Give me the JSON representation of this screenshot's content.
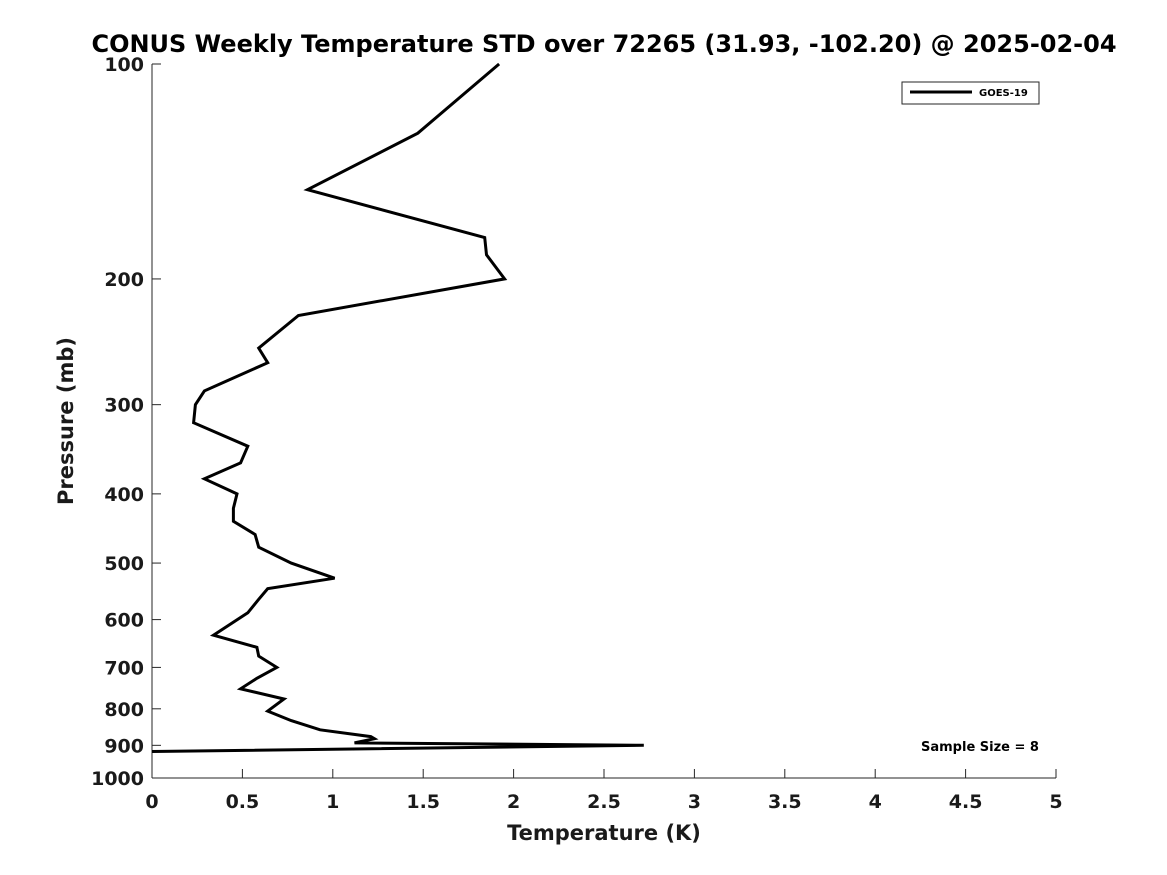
{
  "chart_data": {
    "type": "line",
    "title": "CONUS Weekly Temperature STD over 72265 (31.93, -102.20) @ 2025-02-04",
    "xlabel": "Temperature (K)",
    "ylabel": "Pressure (mb)",
    "xlim": [
      0,
      5
    ],
    "ylim": [
      1000,
      100
    ],
    "y_scale": "log",
    "x_ticks": [
      "0",
      "0.5",
      "1",
      "1.5",
      "2",
      "2.5",
      "3",
      "3.5",
      "4",
      "4.5",
      "5"
    ],
    "y_ticks": [
      "100",
      "200",
      "300",
      "400",
      "500",
      "600",
      "700",
      "800",
      "900",
      "1000"
    ],
    "grid": false,
    "legend_position": "top-right",
    "annotation": "Sample Size = 8",
    "series": [
      {
        "name": "GOES-19",
        "color": "#000000",
        "points": [
          {
            "x": 1.92,
            "p": 100
          },
          {
            "x": 1.47,
            "p": 125
          },
          {
            "x": 0.86,
            "p": 150
          },
          {
            "x": 1.84,
            "p": 175
          },
          {
            "x": 1.85,
            "p": 185
          },
          {
            "x": 1.95,
            "p": 200
          },
          {
            "x": 0.81,
            "p": 225
          },
          {
            "x": 0.59,
            "p": 250
          },
          {
            "x": 0.64,
            "p": 262
          },
          {
            "x": 0.29,
            "p": 287
          },
          {
            "x": 0.24,
            "p": 300
          },
          {
            "x": 0.23,
            "p": 318
          },
          {
            "x": 0.53,
            "p": 343
          },
          {
            "x": 0.49,
            "p": 362
          },
          {
            "x": 0.29,
            "p": 381
          },
          {
            "x": 0.47,
            "p": 400
          },
          {
            "x": 0.45,
            "p": 419
          },
          {
            "x": 0.45,
            "p": 437
          },
          {
            "x": 0.57,
            "p": 456
          },
          {
            "x": 0.59,
            "p": 475
          },
          {
            "x": 0.77,
            "p": 500
          },
          {
            "x": 1.01,
            "p": 525
          },
          {
            "x": 0.64,
            "p": 543
          },
          {
            "x": 0.59,
            "p": 562
          },
          {
            "x": 0.53,
            "p": 587
          },
          {
            "x": 0.34,
            "p": 631
          },
          {
            "x": 0.58,
            "p": 656
          },
          {
            "x": 0.59,
            "p": 675
          },
          {
            "x": 0.69,
            "p": 700
          },
          {
            "x": 0.58,
            "p": 725
          },
          {
            "x": 0.49,
            "p": 750
          },
          {
            "x": 0.73,
            "p": 775
          },
          {
            "x": 0.64,
            "p": 806
          },
          {
            "x": 0.77,
            "p": 831
          },
          {
            "x": 0.93,
            "p": 856
          },
          {
            "x": 1.21,
            "p": 875
          },
          {
            "x": 1.23,
            "p": 881
          },
          {
            "x": 1.12,
            "p": 893
          },
          {
            "x": 2.72,
            "p": 900
          },
          {
            "x": 0.0,
            "p": 918
          }
        ]
      }
    ]
  }
}
